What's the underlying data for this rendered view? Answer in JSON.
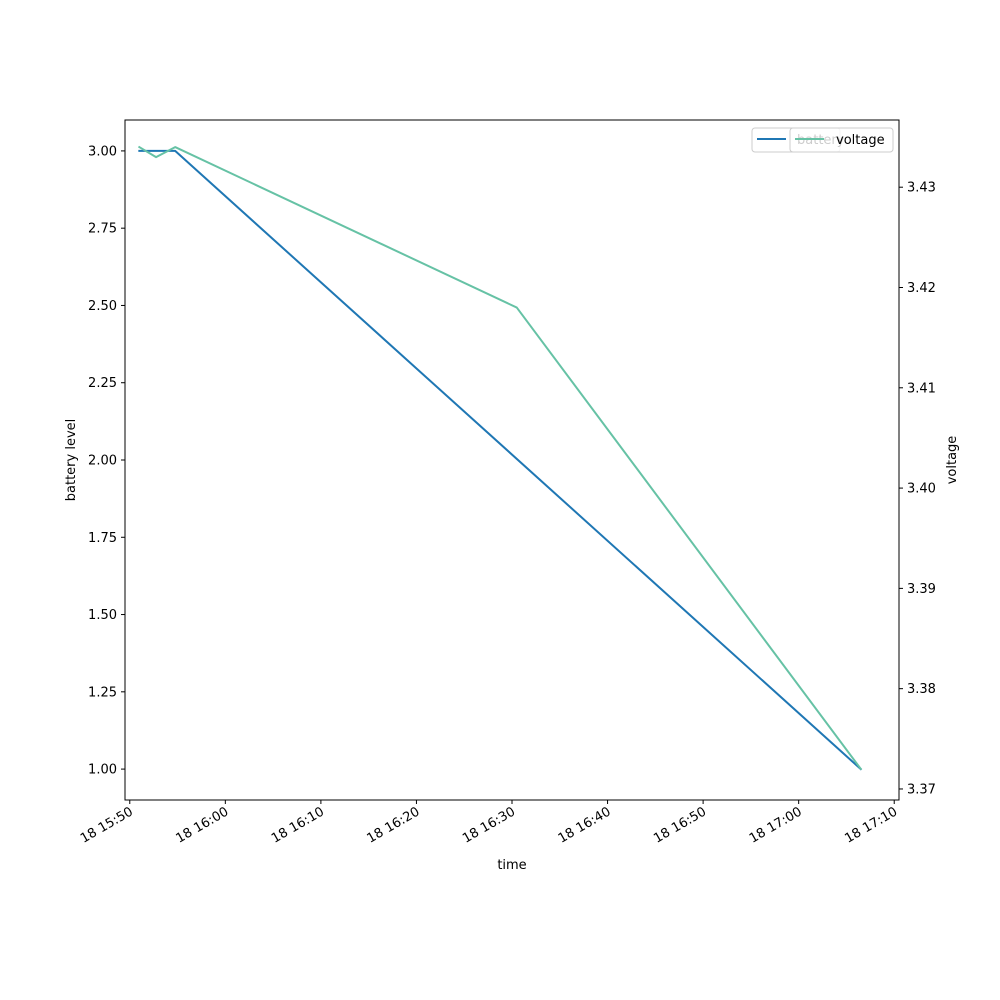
{
  "chart_data": {
    "type": "line",
    "xlabel": "time",
    "ylabel_left": "battery level",
    "ylabel_right": "voltage",
    "x_ticks": [
      "18 15:50",
      "18 16:00",
      "18 16:10",
      "18 16:20",
      "18 16:30",
      "18 16:40",
      "18 16:50",
      "18 17:00",
      "18 17:10"
    ],
    "y_left_ticks": [
      "1.00",
      "1.25",
      "1.50",
      "1.75",
      "2.00",
      "2.25",
      "2.50",
      "2.75",
      "3.00"
    ],
    "y_right_ticks": [
      "3.37",
      "3.38",
      "3.39",
      "3.40",
      "3.41",
      "3.42",
      "3.43"
    ],
    "x_range": [
      "15:49:30",
      "17:10:30"
    ],
    "y_left_range": [
      0.9,
      3.1
    ],
    "y_right_range": [
      3.3689,
      3.4367
    ],
    "legend_placement": "upper-right",
    "grid": false,
    "series": [
      {
        "name": "battery",
        "axis": "left",
        "color": "#1f77b4",
        "points": [
          {
            "t": "15:51:00",
            "v": 3
          },
          {
            "t": "15:54:45",
            "v": 3
          },
          {
            "t": "17:06:30",
            "v": 1
          }
        ]
      },
      {
        "name": "voltage",
        "axis": "right",
        "color": "#66c2a5",
        "points": [
          {
            "t": "15:51:00",
            "v": 3.434
          },
          {
            "t": "15:52:45",
            "v": 3.433
          },
          {
            "t": "15:54:45",
            "v": 3.434
          },
          {
            "t": "16:30:30",
            "v": 3.418
          },
          {
            "t": "17:06:30",
            "v": 3.372
          }
        ]
      }
    ]
  }
}
